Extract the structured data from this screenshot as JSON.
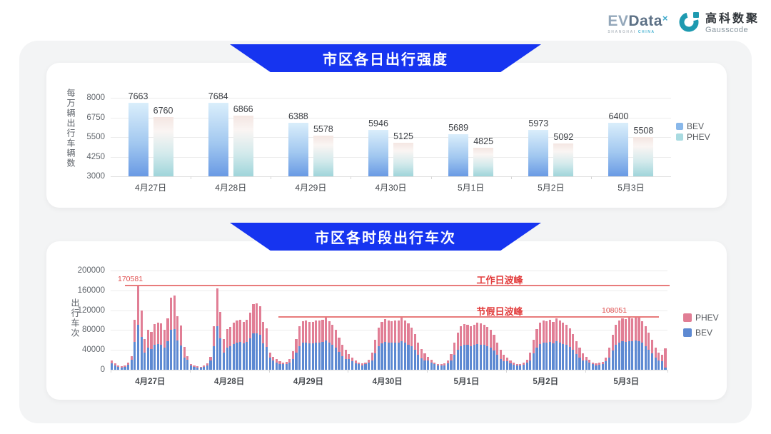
{
  "header": {
    "evdata": {
      "ev": "EV",
      "dt": "Data",
      "sup": "×",
      "sub_left": "SHANGHAI ",
      "sub_right": "CHINA"
    },
    "gausscode": {
      "cn": "高科数聚",
      "en": "Gausscode"
    }
  },
  "chart_data": [
    {
      "type": "bar",
      "title": "市区各日出行强度",
      "ylabel": "每万辆出行车辆数",
      "xlabel": "",
      "ylim": [
        3000,
        8000
      ],
      "yticks": [
        3000,
        4250,
        5500,
        6750,
        8000
      ],
      "grid": true,
      "legend_position": "right",
      "categories": [
        "4月27日",
        "4月28日",
        "4月29日",
        "4月30日",
        "5月1日",
        "5月2日",
        "5月3日"
      ],
      "series": [
        {
          "name": "BEV",
          "values": [
            7663,
            7684,
            6388,
            5946,
            5689,
            5973,
            6400
          ]
        },
        {
          "name": "PHEV",
          "values": [
            6760,
            6866,
            5578,
            5125,
            4825,
            5092,
            5508
          ]
        }
      ],
      "legend": [
        {
          "label": "BEV",
          "color": "#89b8ea"
        },
        {
          "label": "PHEV",
          "color": "#a9dbe1"
        }
      ]
    },
    {
      "type": "bar",
      "subtype": "stacked-hourly",
      "title": "市区各时段出行车次",
      "ylabel": "出行车次",
      "xlabel": "",
      "ylim": [
        0,
        200000
      ],
      "yticks": [
        0,
        40000,
        80000,
        120000,
        160000,
        200000
      ],
      "grid": true,
      "legend_position": "right",
      "legend": [
        {
          "label": "PHEV",
          "color": "#e17e95"
        },
        {
          "label": "BEV",
          "color": "#5d89d2"
        }
      ],
      "annotations": [
        {
          "name": "workday-peak",
          "label": "工作日波峰",
          "value": 170581,
          "value_label": "170581"
        },
        {
          "name": "holiday-peak",
          "label": "节假日波峰",
          "value": 108051,
          "value_label": "108051"
        }
      ],
      "days": [
        {
          "date": "4月27日",
          "bev": [
            13000,
            9000,
            6000,
            5000,
            6000,
            10000,
            20000,
            56000,
            91000,
            66000,
            34000,
            44000,
            42000,
            51000,
            52000,
            51000,
            44000,
            57000,
            80000,
            82000,
            59000,
            49000,
            25000,
            20000
          ],
          "phev": [
            5000,
            4000,
            3000,
            2000,
            2000,
            4000,
            8000,
            45000,
            79581,
            54000,
            28000,
            36000,
            34000,
            41000,
            43000,
            42000,
            36000,
            47000,
            66000,
            67000,
            49000,
            40000,
            21000,
            8000
          ]
        },
        {
          "date": "4月28日",
          "bev": [
            8000,
            6000,
            5000,
            4000,
            6000,
            9000,
            18000,
            48000,
            88000,
            64000,
            34000,
            45000,
            47000,
            52000,
            55000,
            56000,
            53000,
            56000,
            63000,
            73000,
            74000,
            70000,
            53000,
            46000
          ],
          "phev": [
            4000,
            3000,
            2000,
            2000,
            2000,
            4000,
            8000,
            40000,
            76000,
            53000,
            28000,
            37000,
            39000,
            43000,
            45000,
            45000,
            44000,
            45000,
            52000,
            60000,
            60000,
            58000,
            43000,
            38000
          ]
        },
        {
          "date": "4月29日",
          "bev": [
            25000,
            18000,
            15000,
            12000,
            11000,
            11000,
            15000,
            21000,
            34000,
            48000,
            54000,
            55000,
            53000,
            53000,
            55000,
            54000,
            56000,
            59000,
            54000,
            50000,
            44000,
            36000,
            28000,
            22000
          ],
          "phev": [
            10000,
            8000,
            6000,
            5000,
            4000,
            5000,
            7000,
            17000,
            28000,
            40000,
            44000,
            45000,
            44000,
            43000,
            45000,
            45000,
            45000,
            48000,
            44000,
            40000,
            36000,
            29000,
            22000,
            18000
          ]
        },
        {
          "date": "4月30日",
          "bev": [
            22000,
            17000,
            13000,
            11000,
            9000,
            11000,
            14000,
            19000,
            33000,
            47000,
            53000,
            56000,
            55000,
            54000,
            54000,
            55000,
            58000,
            54000,
            51000,
            47000,
            40000,
            30000,
            23000,
            18000
          ],
          "phev": [
            10000,
            7000,
            5000,
            4000,
            4000,
            4000,
            6000,
            16000,
            27000,
            38000,
            44000,
            46000,
            45000,
            44000,
            45000,
            45000,
            47000,
            45000,
            42000,
            38000,
            32000,
            25000,
            19000,
            15000
          ]
        },
        {
          "date": "5月1日",
          "bev": [
            18000,
            14000,
            11000,
            8000,
            8000,
            9000,
            13000,
            18000,
            30000,
            41000,
            48000,
            51000,
            50000,
            48000,
            50000,
            52000,
            51000,
            50000,
            47000,
            44000,
            39000,
            30000,
            22000,
            17000
          ],
          "phev": [
            8000,
            6000,
            4000,
            4000,
            3000,
            4000,
            5000,
            14000,
            25000,
            34000,
            40000,
            41000,
            40000,
            40000,
            41000,
            43000,
            42000,
            40000,
            39000,
            36000,
            31000,
            25000,
            18000,
            13000
          ]
        },
        {
          "date": "5月2日",
          "bev": [
            17000,
            13000,
            10000,
            8000,
            8000,
            10000,
            14000,
            19000,
            33000,
            45000,
            52000,
            55000,
            54000,
            56000,
            53000,
            57000,
            55000,
            52000,
            50000,
            46000,
            40000,
            32000,
            24000,
            18000
          ],
          "phev": [
            7000,
            5000,
            4000,
            4000,
            4000,
            4000,
            6000,
            16000,
            27000,
            37000,
            43000,
            45000,
            44000,
            45000,
            43000,
            47000,
            45000,
            43000,
            40000,
            37000,
            32000,
            26000,
            20000,
            15000
          ]
        },
        {
          "date": "5月3日",
          "bev": [
            18000,
            14000,
            11000,
            9000,
            10000,
            11000,
            17000,
            25000,
            39000,
            50000,
            55000,
            57000,
            56000,
            58000,
            57000,
            59000,
            58000,
            54000,
            48000,
            41000,
            33000,
            25000,
            19000,
            17000,
            5000
          ],
          "phev": [
            8000,
            6000,
            4000,
            4000,
            4000,
            5000,
            7000,
            20000,
            31000,
            40000,
            45000,
            46000,
            46000,
            47000,
            47000,
            49051,
            48000,
            44000,
            40000,
            34000,
            27000,
            20000,
            16000,
            13000,
            38000
          ]
        }
      ]
    }
  ]
}
